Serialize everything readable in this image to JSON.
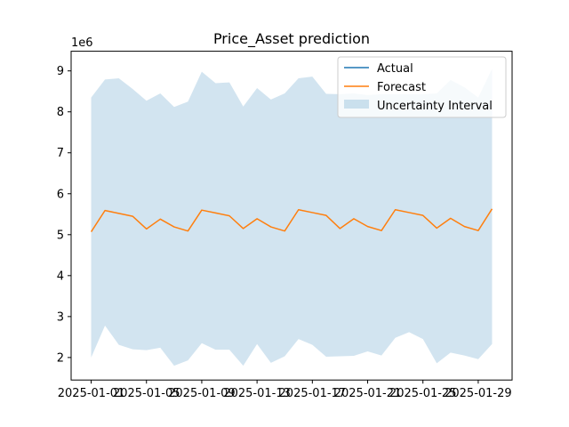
{
  "chart_data": {
    "type": "line",
    "title": "Price_Asset prediction",
    "xlabel": "",
    "ylabel": "",
    "y_offset_label": "1e6",
    "x_dates": [
      "2025-01-01",
      "2025-01-02",
      "2025-01-03",
      "2025-01-04",
      "2025-01-05",
      "2025-01-06",
      "2025-01-07",
      "2025-01-08",
      "2025-01-09",
      "2025-01-10",
      "2025-01-11",
      "2025-01-12",
      "2025-01-13",
      "2025-01-14",
      "2025-01-15",
      "2025-01-16",
      "2025-01-17",
      "2025-01-18",
      "2025-01-19",
      "2025-01-20",
      "2025-01-21",
      "2025-01-22",
      "2025-01-23",
      "2025-01-24",
      "2025-01-25",
      "2025-01-26",
      "2025-01-27",
      "2025-01-28",
      "2025-01-29",
      "2025-01-30"
    ],
    "x_ticks": [
      "2025-01-01",
      "2025-01-05",
      "2025-01-09",
      "2025-01-13",
      "2025-01-17",
      "2025-01-21",
      "2025-01-25",
      "2025-01-29"
    ],
    "x_tick_labels": [
      "2025-01-01",
      "2025-01-05",
      "2025-01-09",
      "2025-01-13",
      "2025-01-17",
      "2025-01-21",
      "2025-01-25",
      "2025-01-29"
    ],
    "y_ticks": [
      2,
      3,
      4,
      5,
      6,
      7,
      8,
      9
    ],
    "y_tick_labels": [
      "2",
      "3",
      "4",
      "5",
      "6",
      "7",
      "8",
      "9"
    ],
    "ylim": [
      1.45,
      9.48
    ],
    "series": [
      {
        "name": "Actual",
        "color": "#1f77b4",
        "values": []
      },
      {
        "name": "Forecast",
        "color": "#ff7f0e",
        "values": [
          5.07,
          5.59,
          5.52,
          5.45,
          5.14,
          5.38,
          5.19,
          5.09,
          5.6,
          5.53,
          5.46,
          5.15,
          5.39,
          5.19,
          5.09,
          5.61,
          5.54,
          5.47,
          5.15,
          5.39,
          5.2,
          5.1,
          5.61,
          5.54,
          5.47,
          5.16,
          5.4,
          5.2,
          5.1,
          5.63
        ]
      }
    ],
    "interval": {
      "name": "Uncertainty Interval",
      "color": "#1f77b4",
      "alpha": 0.2,
      "upper": [
        8.35,
        8.79,
        8.82,
        8.56,
        8.27,
        8.45,
        8.12,
        8.25,
        8.98,
        8.7,
        8.72,
        8.13,
        8.58,
        8.3,
        8.45,
        8.82,
        8.86,
        8.44,
        8.43,
        8.45,
        8.41,
        8.43,
        8.43,
        8.43,
        8.43,
        8.45,
        8.78,
        8.6,
        8.35,
        9.05
      ],
      "lower": [
        2.0,
        2.78,
        2.31,
        2.2,
        2.18,
        2.24,
        1.8,
        1.93,
        2.35,
        2.19,
        2.19,
        1.8,
        2.33,
        1.87,
        2.03,
        2.45,
        2.31,
        2.02,
        2.03,
        2.04,
        2.15,
        2.05,
        2.48,
        2.62,
        2.45,
        1.86,
        2.12,
        2.05,
        1.96,
        2.33
      ]
    },
    "legend": {
      "placement": "top-right",
      "entries": [
        "Actual",
        "Forecast",
        "Uncertainty Interval"
      ]
    },
    "grid": false
  }
}
